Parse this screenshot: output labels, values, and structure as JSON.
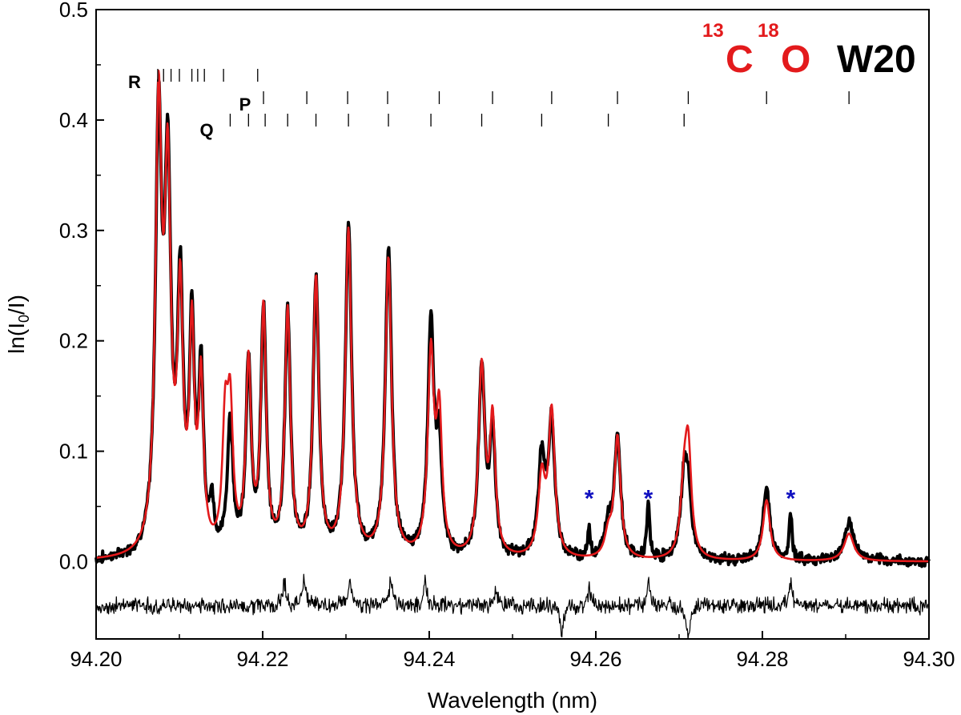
{
  "chart_data": {
    "type": "line",
    "title": "",
    "xlabel": "Wavelength (nm)",
    "ylabel_main": "ln(I",
    "ylabel_sub": "0",
    "ylabel_tail": "/I)",
    "xlim": [
      94.2,
      94.3
    ],
    "ylim": [
      -0.07,
      0.5
    ],
    "x_ticks": [
      94.2,
      94.22,
      94.24,
      94.26,
      94.28,
      94.3
    ],
    "x_tick_labels": [
      "94.20",
      "94.22",
      "94.24",
      "94.26",
      "94.28",
      "94.30"
    ],
    "y_ticks": [
      0.0,
      0.1,
      0.2,
      0.3,
      0.4,
      0.5
    ],
    "y_tick_labels": [
      "0.0",
      "0.1",
      "0.2",
      "0.3",
      "0.4",
      "0.5"
    ],
    "grid": false,
    "legend": "none",
    "annotation": {
      "sup1": "13",
      "main1": "C",
      "sup2": "18",
      "main2": "O",
      "band": "W20",
      "isotope_color": "#e31a1c",
      "band_color": "#000000"
    },
    "branches": [
      {
        "label": "R",
        "lines": [
          94.2074,
          94.2081,
          94.209,
          94.21,
          94.2115,
          94.2122,
          94.213,
          94.2153,
          94.2194
        ]
      },
      {
        "label": "P",
        "lines": [
          94.2201,
          94.2253,
          94.2302,
          94.235,
          94.2412,
          94.2476,
          94.2547,
          94.2626,
          94.2711,
          94.2805,
          94.2904
        ]
      },
      {
        "label": "Q",
        "lines": [
          94.2161,
          94.2183,
          94.2203,
          94.223,
          94.2264,
          94.2303,
          94.2351,
          94.2402,
          94.2463,
          94.2535,
          94.2615,
          94.2706
        ]
      }
    ],
    "stars": {
      "symbol": "*",
      "color": "#1010c0",
      "positions": [
        94.2592,
        94.2663,
        94.2834
      ],
      "y": 0.06
    },
    "baseline": 0.0,
    "series": [
      {
        "role": "measured",
        "color": "#000000",
        "peaks": [
          [
            94.2075,
            0.38,
            0.00045
          ],
          [
            94.2086,
            0.33,
            0.00045
          ],
          [
            94.2101,
            0.23,
            0.0004
          ],
          [
            94.2115,
            0.2,
            0.00035
          ],
          [
            94.2126,
            0.16,
            0.00035
          ],
          [
            94.2139,
            0.04,
            0.0003
          ],
          [
            94.2161,
            0.12,
            0.0004
          ],
          [
            94.2183,
            0.17,
            0.00038
          ],
          [
            94.2201,
            0.22,
            0.00038
          ],
          [
            94.223,
            0.22,
            0.0004
          ],
          [
            94.2264,
            0.25,
            0.00042
          ],
          [
            94.2303,
            0.3,
            0.00045
          ],
          [
            94.2351,
            0.28,
            0.00045
          ],
          [
            94.2402,
            0.21,
            0.00045
          ],
          [
            94.2412,
            0.09,
            0.0004
          ],
          [
            94.2463,
            0.17,
            0.00045
          ],
          [
            94.2476,
            0.11,
            0.0004
          ],
          [
            94.2535,
            0.09,
            0.0005
          ],
          [
            94.2547,
            0.12,
            0.00045
          ],
          [
            94.2592,
            0.025,
            0.0002
          ],
          [
            94.2615,
            0.03,
            0.0005
          ],
          [
            94.2626,
            0.11,
            0.00045
          ],
          [
            94.2663,
            0.05,
            0.0002
          ],
          [
            94.2706,
            0.07,
            0.0005
          ],
          [
            94.2711,
            0.05,
            0.00045
          ],
          [
            94.2805,
            0.065,
            0.0005
          ],
          [
            94.2834,
            0.043,
            0.0002
          ],
          [
            94.2904,
            0.035,
            0.0007
          ]
        ],
        "noise": 0.006
      },
      {
        "role": "fit",
        "color": "#e31a1c",
        "peaks": [
          [
            94.2075,
            0.39,
            0.00045
          ],
          [
            94.2086,
            0.32,
            0.00045
          ],
          [
            94.2101,
            0.22,
            0.0004
          ],
          [
            94.2115,
            0.19,
            0.00035
          ],
          [
            94.2126,
            0.15,
            0.00035
          ],
          [
            94.2155,
            0.11,
            0.0004
          ],
          [
            94.2161,
            0.12,
            0.0004
          ],
          [
            94.2183,
            0.17,
            0.00038
          ],
          [
            94.2201,
            0.22,
            0.00038
          ],
          [
            94.223,
            0.22,
            0.0004
          ],
          [
            94.2264,
            0.25,
            0.00042
          ],
          [
            94.2303,
            0.295,
            0.00045
          ],
          [
            94.2351,
            0.27,
            0.00045
          ],
          [
            94.2402,
            0.18,
            0.00045
          ],
          [
            94.2412,
            0.12,
            0.0004
          ],
          [
            94.2463,
            0.17,
            0.00045
          ],
          [
            94.2476,
            0.12,
            0.0004
          ],
          [
            94.2535,
            0.07,
            0.0005
          ],
          [
            94.2547,
            0.13,
            0.00045
          ],
          [
            94.2615,
            0.02,
            0.0005
          ],
          [
            94.2626,
            0.11,
            0.00045
          ],
          [
            94.2706,
            0.06,
            0.0005
          ],
          [
            94.2711,
            0.09,
            0.00045
          ],
          [
            94.2805,
            0.055,
            0.0005
          ],
          [
            94.2904,
            0.025,
            0.0007
          ]
        ],
        "noise": 0
      },
      {
        "role": "residual",
        "color": "#000000",
        "offset": -0.04,
        "noise": 0.009,
        "spikes": [
          [
            94.2226,
            0.02
          ],
          [
            94.225,
            0.025
          ],
          [
            94.2305,
            0.02
          ],
          [
            94.2354,
            0.025
          ],
          [
            94.2395,
            0.02
          ],
          [
            94.248,
            0.015
          ],
          [
            94.2559,
            -0.025
          ],
          [
            94.2592,
            0.015
          ],
          [
            94.2663,
            0.02
          ],
          [
            94.2711,
            -0.03
          ],
          [
            94.2834,
            0.02
          ]
        ]
      }
    ]
  }
}
